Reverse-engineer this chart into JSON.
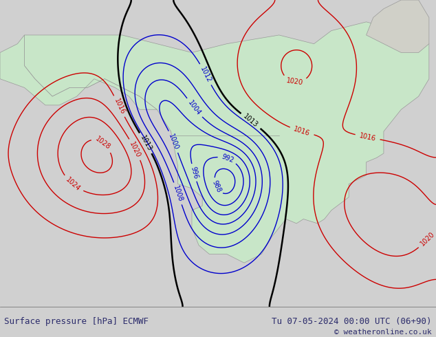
{
  "title_left": "Surface pressure [hPa] ECMWF",
  "title_right": "Tu 07-05-2024 00:00 UTC (06+90)",
  "copyright": "© weatheronline.co.uk",
  "bg_color": "#d8d8d8",
  "land_color": "#c8e6c8",
  "water_color": "#d8d8d8",
  "contour_levels_blue": [
    988,
    992,
    996,
    1000,
    1004,
    1008,
    1012
  ],
  "contour_levels_red": [
    1016,
    1020,
    1024,
    1028
  ],
  "contour_level_black": 1013,
  "figsize": [
    6.34,
    4.9
  ],
  "dpi": 100
}
